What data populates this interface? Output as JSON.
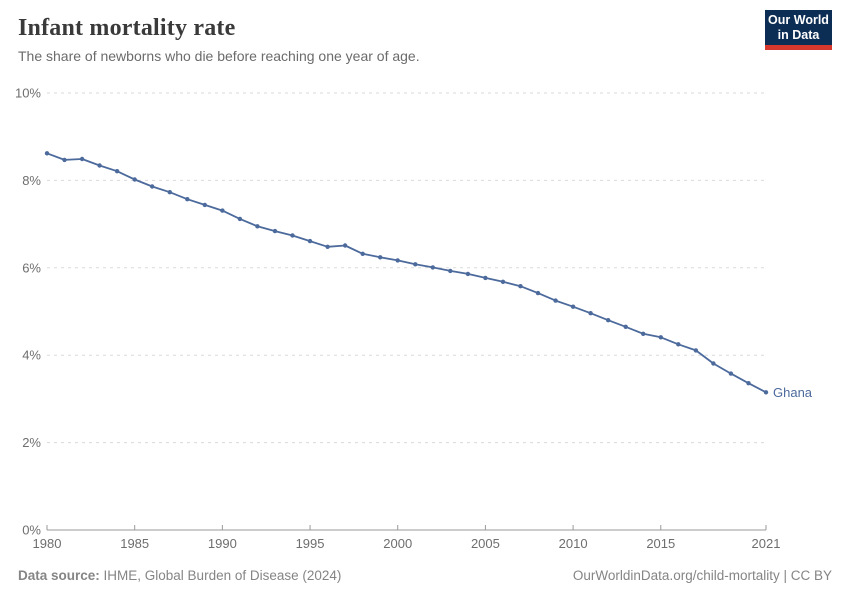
{
  "header": {
    "title": "Infant mortality rate",
    "subtitle": "The share of newborns who die before reaching one year of age.",
    "logo": {
      "line1": "Our World",
      "line2": "in Data"
    }
  },
  "footer": {
    "source_label": "Data source:",
    "source_text": " IHME, Global Burden of Disease (2024)",
    "credit": "OurWorldinData.org/child-mortality | CC BY"
  },
  "colors": {
    "accent_blue": "#4C6A9C",
    "logo_navy": "#0d2e54",
    "logo_red": "#d7382d",
    "title_text": "#3a3a3a",
    "subtitle_text": "#6b6b6b",
    "axis_text": "#6e6e6e",
    "grid_line": "#dadada",
    "axis_line": "#999999",
    "footer_text": "#858585"
  },
  "chart_data": {
    "type": "line",
    "title": "Infant mortality rate",
    "subtitle": "The share of newborns who die before reaching one year of age.",
    "ylabel": "",
    "xlabel": "",
    "unit": "%",
    "ylim": [
      0,
      10
    ],
    "xlim": [
      1980,
      2021
    ],
    "grid": "horizontal-dashed",
    "legend_position": "end-of-line-label",
    "x": [
      1980,
      1981,
      1982,
      1983,
      1984,
      1985,
      1986,
      1987,
      1988,
      1989,
      1990,
      1991,
      1992,
      1993,
      1994,
      1995,
      1996,
      1997,
      1998,
      1999,
      2000,
      2001,
      2002,
      2003,
      2004,
      2005,
      2006,
      2007,
      2008,
      2009,
      2010,
      2011,
      2012,
      2013,
      2014,
      2015,
      2016,
      2017,
      2018,
      2019,
      2020,
      2021
    ],
    "series": [
      {
        "name": "Ghana",
        "values": [
          8.62,
          8.47,
          8.49,
          8.34,
          8.21,
          8.02,
          7.86,
          7.73,
          7.57,
          7.44,
          7.31,
          7.12,
          6.95,
          6.84,
          6.74,
          6.61,
          6.48,
          6.51,
          6.32,
          6.24,
          6.17,
          6.08,
          6.01,
          5.93,
          5.86,
          5.77,
          5.68,
          5.58,
          5.42,
          5.25,
          5.11,
          4.96,
          4.8,
          4.65,
          4.49,
          4.41,
          4.25,
          4.11,
          3.81,
          3.58,
          3.36,
          3.15
        ]
      }
    ],
    "x_ticks": [
      1980,
      1985,
      1990,
      1995,
      2000,
      2005,
      2010,
      2015,
      2021
    ],
    "y_ticks": [
      {
        "value": 0,
        "label": "0%"
      },
      {
        "value": 2,
        "label": "2%"
      },
      {
        "value": 4,
        "label": "4%"
      },
      {
        "value": 6,
        "label": "6%"
      },
      {
        "value": 8,
        "label": "8%"
      },
      {
        "value": 10,
        "label": "10%"
      }
    ]
  }
}
